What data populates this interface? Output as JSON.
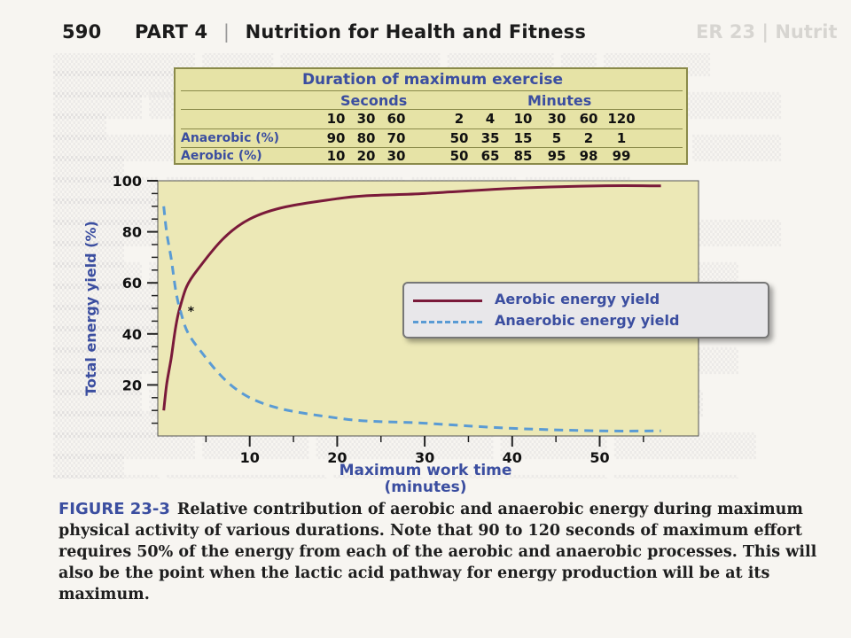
{
  "header": {
    "page_number": "590",
    "part": "PART 4",
    "divider": "|",
    "section": "Nutrition for Health and Fitness",
    "ghost_text": "ER 23 | Nutrit"
  },
  "table": {
    "title": "Duration of maximum exercise",
    "group_seconds": "Seconds",
    "group_minutes": "Minutes",
    "durations_seconds": [
      "10",
      "30",
      "60"
    ],
    "durations_minutes": [
      "2",
      "4",
      "10",
      "30",
      "60",
      "120"
    ],
    "rows": [
      {
        "label": "Anaerobic (%)",
        "values": [
          "90",
          "80",
          "70",
          "50",
          "35",
          "15",
          "5",
          "2",
          "1"
        ]
      },
      {
        "label": "Aerobic (%)",
        "values": [
          "10",
          "20",
          "30",
          "50",
          "65",
          "85",
          "95",
          "98",
          "99"
        ]
      }
    ]
  },
  "chart_data": {
    "type": "line",
    "title": "",
    "xlabel": "Maximum work time",
    "xlabel_units": "(minutes)",
    "ylabel": "Total energy yield (%)",
    "xlim": [
      0,
      57
    ],
    "ylim": [
      0,
      100
    ],
    "xticks": [
      10,
      20,
      30,
      40,
      50
    ],
    "yticks": [
      20,
      40,
      60,
      80,
      100
    ],
    "intersection_marker": "*",
    "intersection_point": {
      "x": 2,
      "y": 50
    },
    "series": [
      {
        "name": "Aerobic energy yield",
        "color": "#7a1a3a",
        "style": "solid",
        "x": [
          0.17,
          0.5,
          1,
          2,
          4,
          10,
          20,
          30,
          40,
          50,
          57
        ],
        "y": [
          10,
          20,
          30,
          50,
          65,
          85,
          93,
          95,
          97,
          98,
          98
        ]
      },
      {
        "name": "Anaerobic energy yield",
        "color": "#5a9bd4",
        "style": "dashed",
        "x": [
          0.17,
          0.5,
          1,
          2,
          4,
          10,
          20,
          30,
          40,
          50,
          57
        ],
        "y": [
          90,
          80,
          70,
          50,
          35,
          15,
          7,
          5,
          3,
          2,
          2
        ]
      }
    ],
    "legend_position": "right"
  },
  "caption": {
    "label": "FIGURE 23-3",
    "text": "Relative contribution of aerobic and anaerobic energy during maximum physical activity of various durations. Note that 90 to 120 seconds of maximum effort requires 50% of the energy from each of the aerobic and anaerobic processes. This will also be the point when the lactic acid pathway for energy production will be at its maximum."
  },
  "colors": {
    "table_bg": "#e6e3a6",
    "plot_bg": "#ece8b6",
    "label_blue": "#3b4ea0",
    "aerobic": "#7a1a3a",
    "anaerobic": "#5a9bd4"
  }
}
